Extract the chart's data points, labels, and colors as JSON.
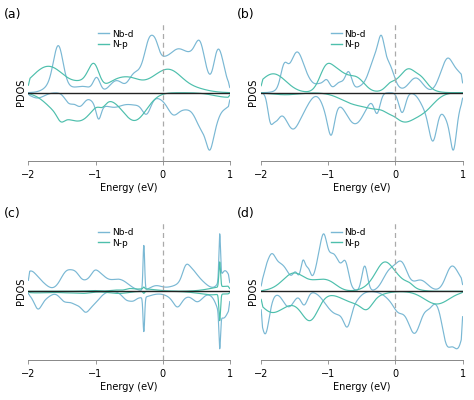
{
  "panels": [
    "(a)",
    "(b)",
    "(c)",
    "(d)"
  ],
  "xlim": [
    -2,
    1
  ],
  "xlabel": "Energy (eV)",
  "ylabel": "PDOS",
  "legend": [
    "Nb-d",
    "N-p"
  ],
  "nb_color": "#7ab8d4",
  "np_color": "#4dbfac",
  "zero_line_color": "#222222",
  "dashed_line_color": "#aaaaaa",
  "bg_color": "#ffffff",
  "axis_color": "#888888",
  "tick_fontsize": 7,
  "label_fontsize": 7,
  "legend_fontsize": 6.5,
  "panel_fontsize": 9,
  "linewidth": 0.85
}
